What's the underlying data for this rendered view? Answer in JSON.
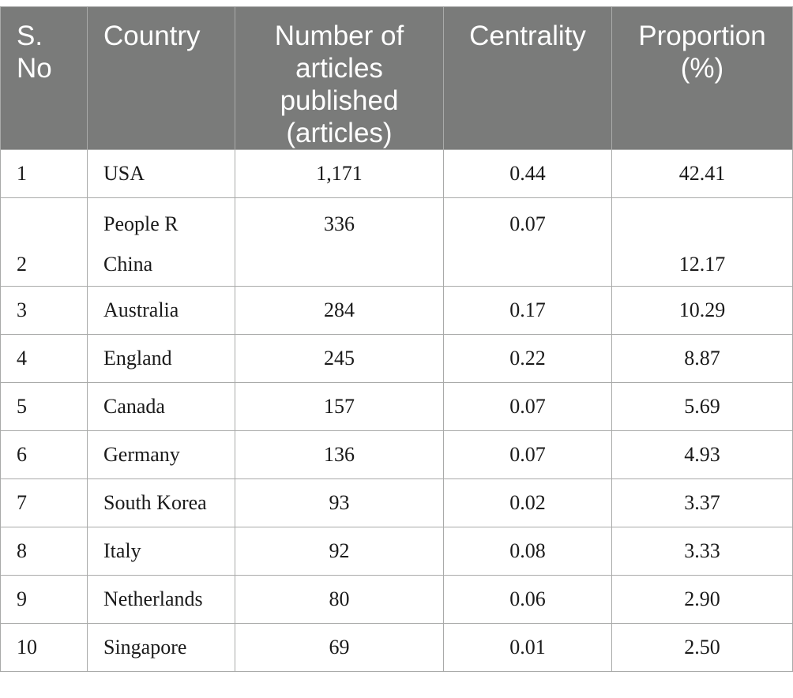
{
  "table": {
    "headers": [
      "S. No",
      "Country",
      "Number of articles published (articles)",
      "Centrality",
      "Proportion (%)"
    ],
    "rows": [
      {
        "sno": "1",
        "country": "USA",
        "articles": "1,171",
        "centrality": "0.44",
        "proportion": "42.41"
      },
      {
        "sno": "2",
        "country_line1": "People R",
        "country_line2": "China",
        "articles": "336",
        "centrality": "0.07",
        "proportion": "12.17"
      },
      {
        "sno": "3",
        "country": "Australia",
        "articles": "284",
        "centrality": "0.17",
        "proportion": "10.29"
      },
      {
        "sno": "4",
        "country": "England",
        "articles": "245",
        "centrality": "0.22",
        "proportion": "8.87"
      },
      {
        "sno": "5",
        "country": "Canada",
        "articles": "157",
        "centrality": "0.07",
        "proportion": "5.69"
      },
      {
        "sno": "6",
        "country": "Germany",
        "articles": "136",
        "centrality": "0.07",
        "proportion": "4.93"
      },
      {
        "sno": "7",
        "country": "South Korea",
        "articles": "93",
        "centrality": "0.02",
        "proportion": "3.37"
      },
      {
        "sno": "8",
        "country": "Italy",
        "articles": "92",
        "centrality": "0.08",
        "proportion": "3.33"
      },
      {
        "sno": "9",
        "country": "Netherlands",
        "articles": "80",
        "centrality": "0.06",
        "proportion": "2.90"
      },
      {
        "sno": "10",
        "country": "Singapore",
        "articles": "69",
        "centrality": "0.01",
        "proportion": "2.50"
      }
    ]
  },
  "colors": {
    "header_bg": "#7a7b7a",
    "header_text": "#ffffff",
    "border": "#a9aaa9"
  }
}
